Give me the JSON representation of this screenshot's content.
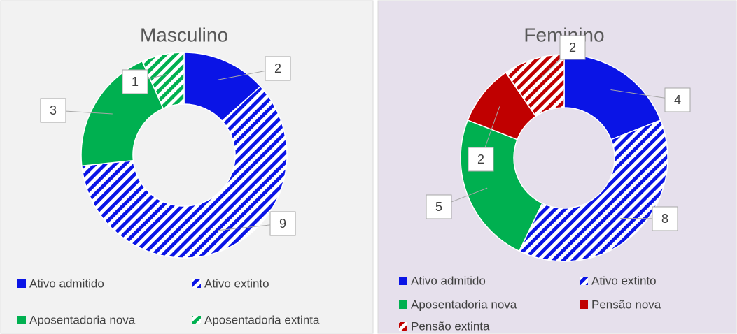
{
  "chart_data": [
    {
      "type": "donut",
      "title": "Masculino",
      "categories": [
        "Ativo admitido",
        "Ativo extinto",
        "Aposentadoria nova",
        "Aposentadoria extinta"
      ],
      "values": [
        2,
        9,
        3,
        1
      ],
      "colors": [
        "#0a14e6",
        "#0a14e6",
        "#00b050",
        "#00b050"
      ],
      "hatched": [
        false,
        true,
        false,
        true
      ]
    },
    {
      "type": "donut",
      "title": "Feminino",
      "categories": [
        "Ativo admitido",
        "Ativo extinto",
        "Aposentadoria nova",
        "Pensão nova",
        "Pensão extinta"
      ],
      "values": [
        4,
        8,
        5,
        2,
        2
      ],
      "colors": [
        "#0a14e6",
        "#0a14e6",
        "#00b050",
        "#c00000",
        "#c00000"
      ],
      "hatched": [
        false,
        true,
        false,
        false,
        true
      ]
    }
  ]
}
